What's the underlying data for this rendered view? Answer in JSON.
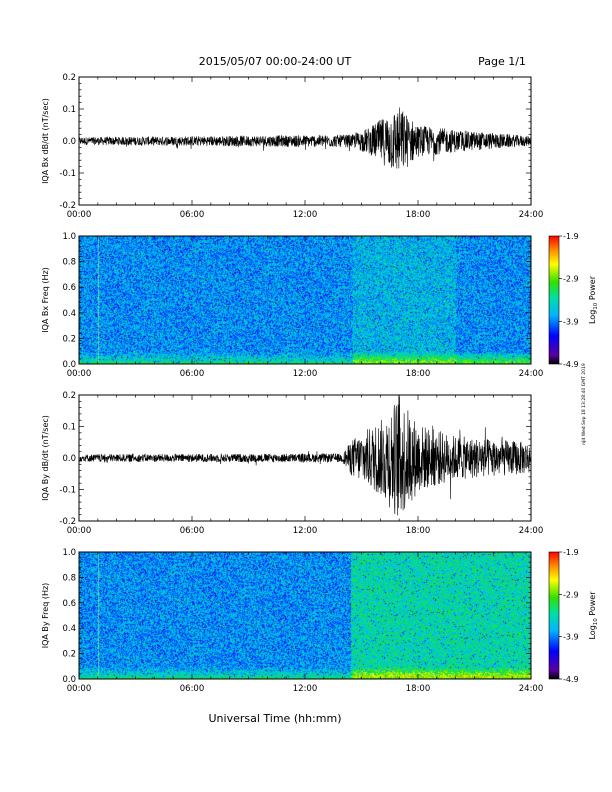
{
  "header": {
    "date_range": "2015/05/07  00:00-24:00 UT",
    "page": "Page 1/1"
  },
  "side_stamp": "njit Wed Sep 18 13:28:40 GMT 2019",
  "xlabel": "Universal Time (hh:mm)",
  "colorbar": {
    "label_prefix": "Log",
    "label_sub": "10",
    "label_suffix": " Power",
    "ticks": [
      "-1.9",
      "-2.9",
      "-3.9",
      "-4.9"
    ],
    "range": [
      -4.9,
      -1.9
    ]
  },
  "chart_data": [
    {
      "type": "line",
      "ylabel": "IQA Bx dB/dt (nT/sec)",
      "ylim": [
        -0.2,
        0.2
      ],
      "yticks": [
        "0.2",
        "0.1",
        "0.0",
        "-0.1",
        "-0.2"
      ],
      "xticks": [
        "00:00",
        "06:00",
        "12:00",
        "18:00",
        "24:00"
      ],
      "xlim_hours": [
        0,
        24
      ],
      "series": [
        {
          "values_hours": [
            0,
            14.5,
            15.5,
            16.5,
            17.0,
            17.5,
            18.0,
            20.0,
            24.0
          ],
          "envelope_amp": [
            0.012,
            0.02,
            0.045,
            0.09,
            0.11,
            0.08,
            0.05,
            0.035,
            0.015
          ]
        }
      ]
    },
    {
      "type": "heatmap",
      "ylabel": "IQA Bx Freq (Hz)",
      "ylim": [
        0.0,
        1.0
      ],
      "yticks": [
        "1.0",
        "0.8",
        "0.6",
        "0.4",
        "0.2",
        "0.0"
      ],
      "xticks": [
        "00:00",
        "06:00",
        "12:00",
        "18:00",
        "24:00"
      ],
      "xlim_hours": [
        0,
        24
      ]
    },
    {
      "type": "line",
      "ylabel": "IQA By dB/dt (nT/sec)",
      "ylim": [
        -0.2,
        0.2
      ],
      "yticks": [
        "0.2",
        "0.1",
        "0.0",
        "-0.1",
        "-0.2"
      ],
      "xticks": [
        "00:00",
        "06:00",
        "12:00",
        "18:00",
        "24:00"
      ],
      "xlim_hours": [
        0,
        24
      ],
      "series": [
        {
          "values_hours": [
            0,
            14.0,
            14.5,
            16.0,
            17.0,
            18.0,
            20.0,
            22.0,
            24.0
          ],
          "envelope_amp": [
            0.012,
            0.014,
            0.06,
            0.12,
            0.2,
            0.11,
            0.07,
            0.06,
            0.05
          ]
        }
      ]
    },
    {
      "type": "heatmap",
      "ylabel": "IQA By Freq (Hz)",
      "ylim": [
        0.0,
        1.0
      ],
      "yticks": [
        "1.0",
        "0.8",
        "0.6",
        "0.4",
        "0.2",
        "0.0"
      ],
      "xticks": [
        "00:00",
        "06:00",
        "12:00",
        "18:00",
        "24:00"
      ],
      "xlim_hours": [
        0,
        24
      ]
    }
  ]
}
